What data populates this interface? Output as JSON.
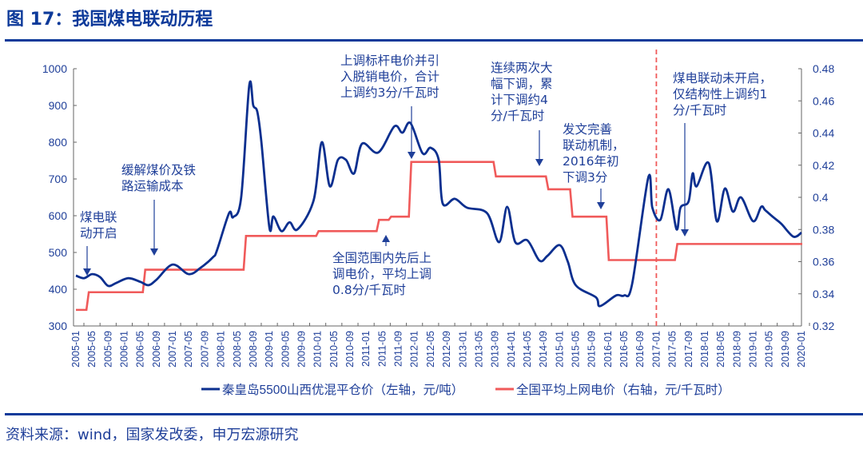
{
  "title": "图 17：我国煤电联动历程",
  "source": "资料来源：wind，国家发改委，申万宏源研究",
  "chart_data": {
    "type": "line",
    "title": "图 17：我国煤电联动历程",
    "x_tick_labels": [
      "2005-01",
      "2005-05",
      "2005-09",
      "2006-01",
      "2006-05",
      "2006-09",
      "2007-01",
      "2007-05",
      "2007-09",
      "2008-01",
      "2008-05",
      "2008-09",
      "2009-01",
      "2009-05",
      "2009-09",
      "2010-01",
      "2010-05",
      "2010-09",
      "2011-01",
      "2011-05",
      "2011-09",
      "2012-01",
      "2012-05",
      "2012-09",
      "2013-01",
      "2013-05",
      "2013-09",
      "2014-01",
      "2014-05",
      "2014-09",
      "2015-01",
      "2015-05",
      "2015-09",
      "2016-01",
      "2016-05",
      "2016-09",
      "2017-01",
      "2017-05",
      "2017-09",
      "2018-01",
      "2018-05",
      "2018-09",
      "2019-01",
      "2019-05",
      "2019-09",
      "2020-01"
    ],
    "y_left": {
      "range": [
        300,
        1000
      ],
      "ticks": [
        "300",
        "400",
        "500",
        "600",
        "700",
        "800",
        "900",
        "1000"
      ]
    },
    "y_right": {
      "range": [
        0.32,
        0.48
      ],
      "ticks": [
        "0.32",
        "0.34",
        "0.36",
        "0.38",
        "0.4",
        "0.42",
        "0.44",
        "0.46",
        "0.48"
      ]
    },
    "series": [
      {
        "name": "秦皇岛5500山西优混平仓价（左轴，元/吨）",
        "axis": "left",
        "color": "#0b2f8f",
        "style": "smooth",
        "points": [
          [
            "2005-01",
            437
          ],
          [
            "2005-03",
            430
          ],
          [
            "2005-05",
            441
          ],
          [
            "2005-07",
            433
          ],
          [
            "2005-09",
            409
          ],
          [
            "2005-11",
            417
          ],
          [
            "2006-02",
            430
          ],
          [
            "2006-05",
            420
          ],
          [
            "2006-07",
            411
          ],
          [
            "2006-09",
            426
          ],
          [
            "2007-01",
            467
          ],
          [
            "2007-05",
            441
          ],
          [
            "2007-08",
            459
          ],
          [
            "2007-11",
            487
          ],
          [
            "2007-12",
            506
          ],
          [
            "2008-03",
            607
          ],
          [
            "2008-04",
            596
          ],
          [
            "2008-06",
            650
          ],
          [
            "2008-08",
            954
          ],
          [
            "2008-09",
            900
          ],
          [
            "2008-10",
            883
          ],
          [
            "2008-11",
            802
          ],
          [
            "2009-01",
            568
          ],
          [
            "2009-02",
            598
          ],
          [
            "2009-04",
            558
          ],
          [
            "2009-06",
            582
          ],
          [
            "2009-08",
            563
          ],
          [
            "2009-12",
            643
          ],
          [
            "2010-02",
            800
          ],
          [
            "2010-04",
            680
          ],
          [
            "2010-06",
            752
          ],
          [
            "2010-08",
            752
          ],
          [
            "2010-10",
            715
          ],
          [
            "2010-12",
            796
          ],
          [
            "2011-04",
            772
          ],
          [
            "2011-08",
            843
          ],
          [
            "2011-10",
            826
          ],
          [
            "2011-12",
            852
          ],
          [
            "2012-03",
            770
          ],
          [
            "2012-05",
            785
          ],
          [
            "2012-07",
            752
          ],
          [
            "2012-08",
            633
          ],
          [
            "2012-11",
            646
          ],
          [
            "2013-02",
            622
          ],
          [
            "2013-07",
            607
          ],
          [
            "2013-10",
            528
          ],
          [
            "2013-12",
            624
          ],
          [
            "2014-02",
            528
          ],
          [
            "2014-05",
            533
          ],
          [
            "2014-08",
            478
          ],
          [
            "2014-10",
            491
          ],
          [
            "2015-01",
            520
          ],
          [
            "2015-03",
            476
          ],
          [
            "2015-05",
            411
          ],
          [
            "2015-10",
            378
          ],
          [
            "2015-11",
            354
          ],
          [
            "2016-03",
            383
          ],
          [
            "2016-05",
            383
          ],
          [
            "2016-07",
            415
          ],
          [
            "2016-11",
            704
          ],
          [
            "2016-12",
            622
          ],
          [
            "2017-02",
            589
          ],
          [
            "2017-04",
            672
          ],
          [
            "2017-06",
            563
          ],
          [
            "2017-07",
            622
          ],
          [
            "2017-09",
            639
          ],
          [
            "2017-10",
            715
          ],
          [
            "2017-11",
            680
          ],
          [
            "2018-02",
            743
          ],
          [
            "2018-04",
            585
          ],
          [
            "2018-06",
            674
          ],
          [
            "2018-08",
            611
          ],
          [
            "2018-10",
            650
          ],
          [
            "2019-01",
            585
          ],
          [
            "2019-03",
            624
          ],
          [
            "2019-04",
            615
          ],
          [
            "2019-06",
            596
          ],
          [
            "2019-08",
            578
          ],
          [
            "2019-11",
            543
          ],
          [
            "2020-01",
            554
          ]
        ]
      },
      {
        "name": "全国平均上网电价（右轴，元/千瓦时）",
        "axis": "right",
        "color": "#f05a5a",
        "style": "step",
        "points": [
          [
            "2005-01",
            0.33
          ],
          [
            "2005-04",
            0.341
          ],
          [
            "2006-06",
            0.355
          ],
          [
            "2008-07",
            0.376
          ],
          [
            "2010-01",
            0.379
          ],
          [
            "2011-04",
            0.386
          ],
          [
            "2011-07",
            0.388
          ],
          [
            "2011-12",
            0.422
          ],
          [
            "2013-09",
            0.413
          ],
          [
            "2014-10",
            0.405
          ],
          [
            "2015-04",
            0.388
          ],
          [
            "2016-01",
            0.361
          ],
          [
            "2017-06",
            0.371
          ],
          [
            "2020-01",
            0.371
          ]
        ]
      }
    ],
    "reference_line": {
      "x": "2017-01",
      "style": "dashed",
      "color": "#f05a5a"
    },
    "annotations": [
      {
        "lines": [
          "煤电联",
          "动开启"
        ],
        "date": "2005-04"
      },
      {
        "lines": [
          "缓解煤价及铁",
          "路运输成本"
        ],
        "date": "2006-07"
      },
      {
        "lines": [
          "上调标杆电价并引",
          "入脱销电价，合计",
          "上调约3分/千瓦时"
        ],
        "date": "2011-12"
      },
      {
        "lines": [
          "全国范围内先后上",
          "调电价，平均上调",
          "0.8分/千瓦时"
        ],
        "date": "2011-04"
      },
      {
        "lines": [
          "连续两次大",
          "幅下调，累",
          "计下调约4",
          "分/千瓦时"
        ],
        "date": "2014-05"
      },
      {
        "lines": [
          "发文完善",
          "联动机制，",
          "2016年初",
          "下调3分"
        ],
        "date": "2015-12"
      },
      {
        "lines": [
          "煤电联动未开启，",
          "仅结构性上调约1",
          "分/千瓦时"
        ],
        "date": "2017-06"
      }
    ],
    "legend": {
      "position": "bottom"
    },
    "grid": false
  }
}
